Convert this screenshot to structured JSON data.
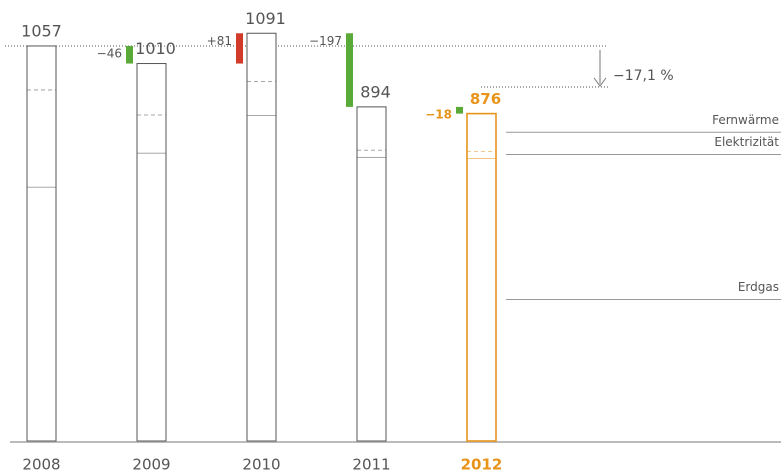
{
  "chart_data": {
    "type": "stacked_bar",
    "categories": [
      "2008",
      "2009",
      "2010",
      "2011",
      "2012"
    ],
    "series": [
      {
        "name": "Erdgas",
        "line_style": "solid",
        "values": [
          680,
          771,
          872,
          760,
          757
        ]
      },
      {
        "name": "Elektrizität",
        "line_style": "dashed",
        "values": [
          260,
          102,
          91,
          19,
          19
        ]
      },
      {
        "name": "Fernwärme",
        "line_style": "solid",
        "values": [
          117,
          137,
          128,
          115,
          100
        ]
      }
    ],
    "totals": [
      1057,
      1010,
      1091,
      894,
      876
    ],
    "changes": {
      "values": [
        null,
        -46,
        81,
        -197,
        -18
      ],
      "value_labels": [
        null,
        "−46",
        "+81",
        "−197",
        "−18"
      ],
      "colors": [
        null,
        "#5aaa3a",
        "#d23b2a",
        "#5aaa3a",
        "#5aaa3a"
      ]
    },
    "bar_colors": [
      "#555555",
      "#555555",
      "#555555",
      "#555555",
      "#e8941a"
    ],
    "annotation": "−17,1 %",
    "ylim": [
      0,
      1180
    ]
  }
}
